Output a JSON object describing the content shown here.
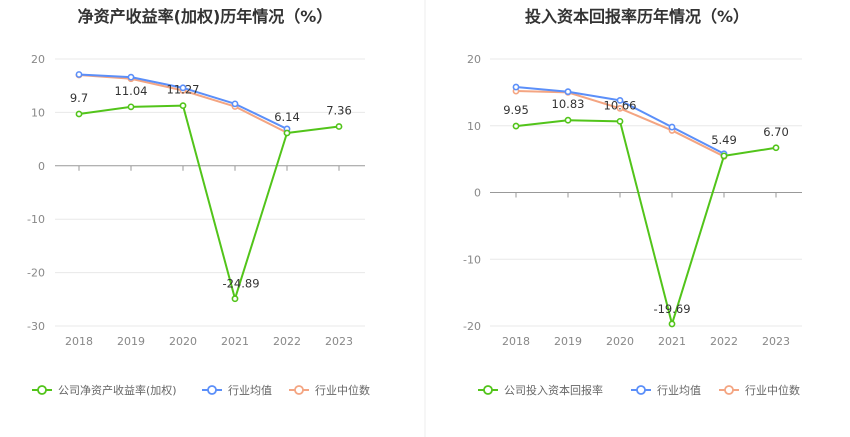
{
  "chart_data": [
    {
      "type": "line",
      "title": "净资产收益率(加权)历年情况（%）",
      "categories": [
        "2018",
        "2019",
        "2020",
        "2021",
        "2022",
        "2023"
      ],
      "ylim": [
        -30,
        20
      ],
      "yticks": [
        "20",
        "10",
        "0",
        "-10",
        "-20",
        "-30"
      ],
      "grid": true,
      "legend_position": "bottom",
      "series": [
        {
          "name": "公司净资产收益率(加权)",
          "color": "#52c41a",
          "values": [
            9.7,
            11.04,
            11.27,
            -24.89,
            6.14,
            7.36
          ],
          "labels": [
            "9.7",
            "11.04",
            "11.27",
            "-24.89",
            "6.14",
            "7.36"
          ]
        },
        {
          "name": "行业均值",
          "color": "#5b8ff9",
          "values": [
            17.1,
            16.6,
            14.6,
            11.6,
            6.9,
            null
          ]
        },
        {
          "name": "行业中位数",
          "color": "#f4a582",
          "values": [
            17.0,
            16.3,
            14.1,
            11.1,
            6.2,
            null
          ]
        }
      ]
    },
    {
      "type": "line",
      "title": "投入资本回报率历年情况（%）",
      "categories": [
        "2018",
        "2019",
        "2020",
        "2021",
        "2022",
        "2023"
      ],
      "ylim": [
        -20,
        20
      ],
      "yticks": [
        "20",
        "10",
        "0",
        "-10",
        "-20"
      ],
      "grid": true,
      "legend_position": "bottom",
      "series": [
        {
          "name": "公司投入资本回报率",
          "color": "#52c41a",
          "values": [
            9.95,
            10.83,
            10.66,
            -19.69,
            5.49,
            6.7
          ],
          "labels": [
            "9.95",
            "10.83",
            "10.66",
            "-19.69",
            "5.49",
            "6.70"
          ]
        },
        {
          "name": "行业均值",
          "color": "#5b8ff9",
          "values": [
            15.8,
            15.1,
            13.8,
            9.8,
            5.8,
            null
          ]
        },
        {
          "name": "行业中位数",
          "color": "#f4a582",
          "values": [
            15.2,
            15.0,
            12.6,
            9.3,
            5.4,
            null
          ]
        }
      ]
    }
  ]
}
